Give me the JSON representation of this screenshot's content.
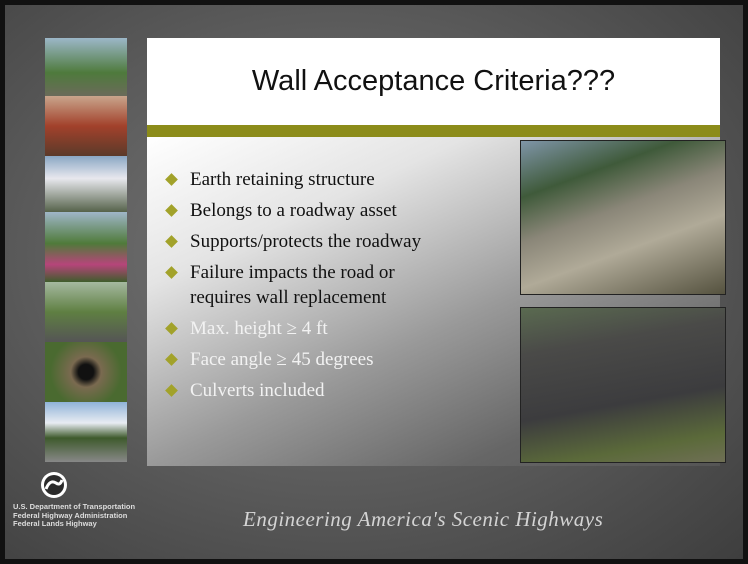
{
  "slide": {
    "title": "Wall Acceptance Criteria???",
    "bullets": [
      "Earth retaining structure",
      "Belongs to a roadway asset",
      "Supports/protects the roadway",
      "Failure impacts the road or requires wall replacement",
      "Max. height ≥ 4 ft",
      "Face angle ≥ 45 degrees",
      "Culverts included"
    ],
    "agency": [
      "U.S. Department of Transportation",
      "Federal Highway Administration",
      "Federal Lands Highway"
    ],
    "tagline": "Engineering America's Scenic Highways"
  }
}
